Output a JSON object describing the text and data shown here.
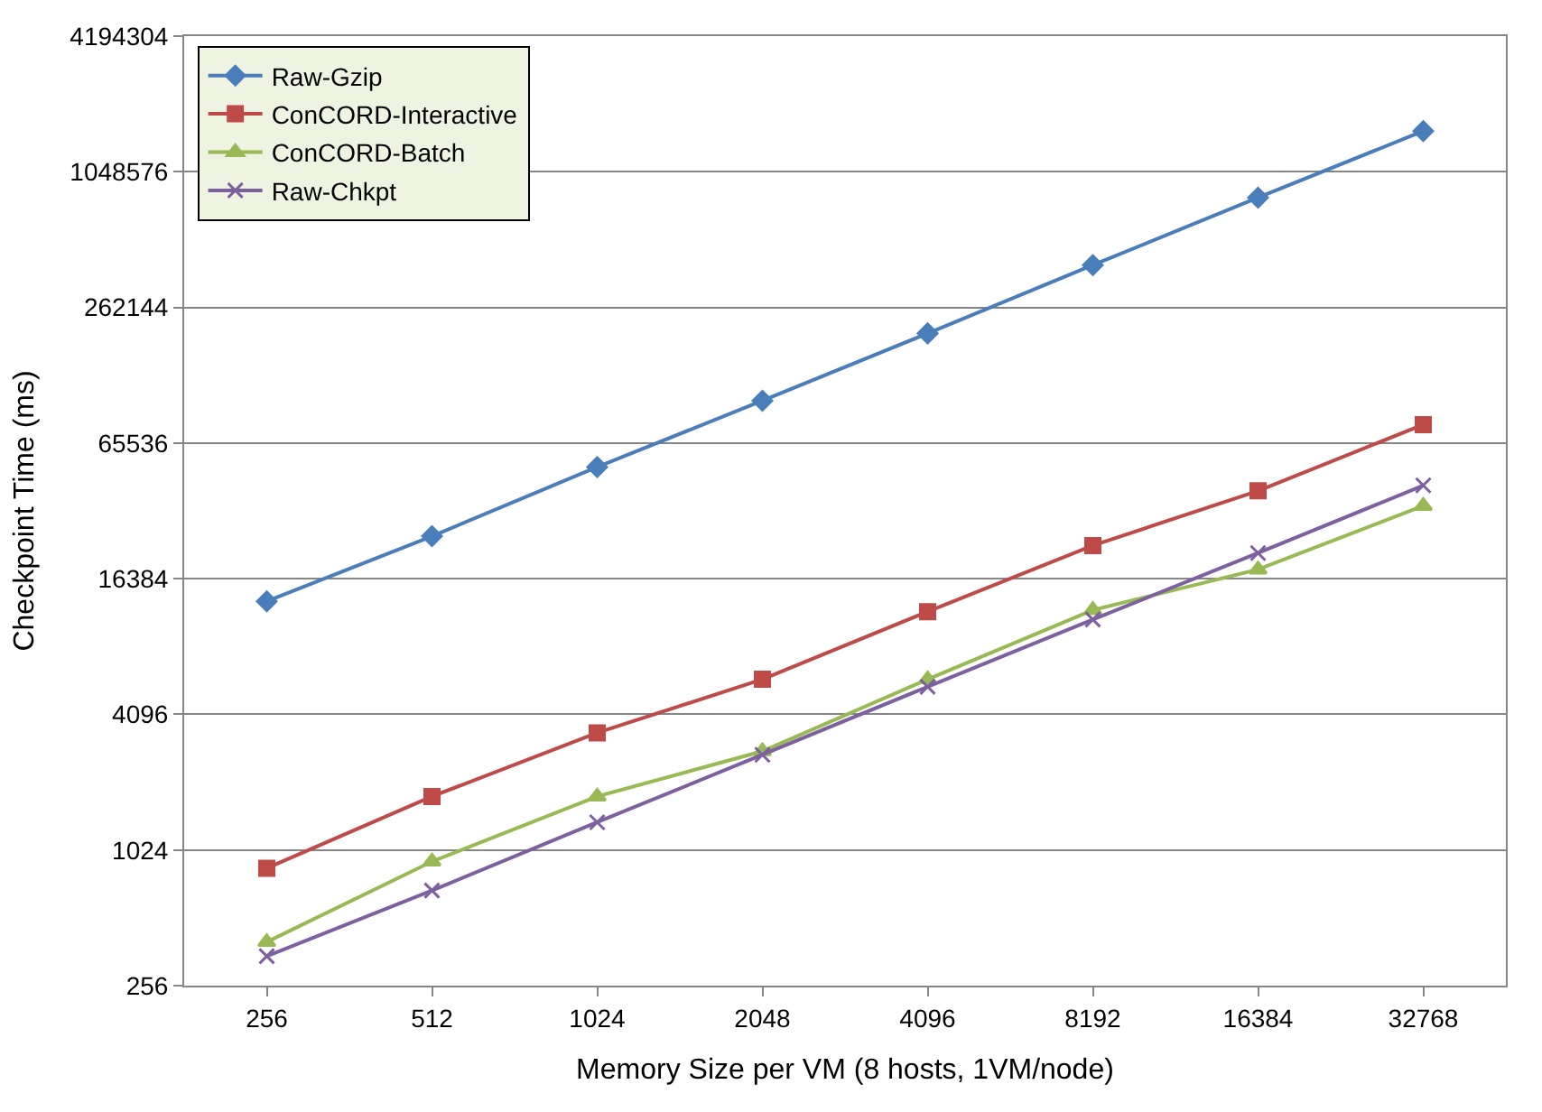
{
  "chart_data": {
    "type": "line",
    "xlabel": "Memory Size per VM (8 hosts, 1VM/node)",
    "ylabel": "Checkpoint Time (ms)",
    "categories": [
      "256",
      "512",
      "1024",
      "2048",
      "4096",
      "8192",
      "16384",
      "32768"
    ],
    "series": [
      {
        "name": "Raw-Gzip",
        "color": "#4a7ebb",
        "marker": "diamond",
        "values": [
          13000,
          25300,
          51300,
          101000,
          201000,
          404000,
          805000,
          1590000
        ]
      },
      {
        "name": "ConCORD-Interactive",
        "color": "#be4b48",
        "marker": "square",
        "values": [
          850,
          1770,
          3390,
          5860,
          11700,
          23000,
          40200,
          79100
        ]
      },
      {
        "name": "ConCORD-Batch",
        "color": "#98b954",
        "marker": "triangle",
        "values": [
          400,
          910,
          1770,
          2810,
          5860,
          11900,
          18000,
          34500
        ]
      },
      {
        "name": "Raw-Chkpt",
        "color": "#7d60a0",
        "marker": "cross",
        "values": [
          346,
          677,
          1360,
          2710,
          5430,
          10800,
          21300,
          42500
        ]
      }
    ],
    "log": "y",
    "ylim": [
      256,
      4194304
    ],
    "yticks": [
      256,
      1024,
      4096,
      16384,
      65536,
      262144,
      1048576,
      4194304
    ],
    "grid": "y",
    "legend": "top left",
    "line_style": "solid"
  }
}
